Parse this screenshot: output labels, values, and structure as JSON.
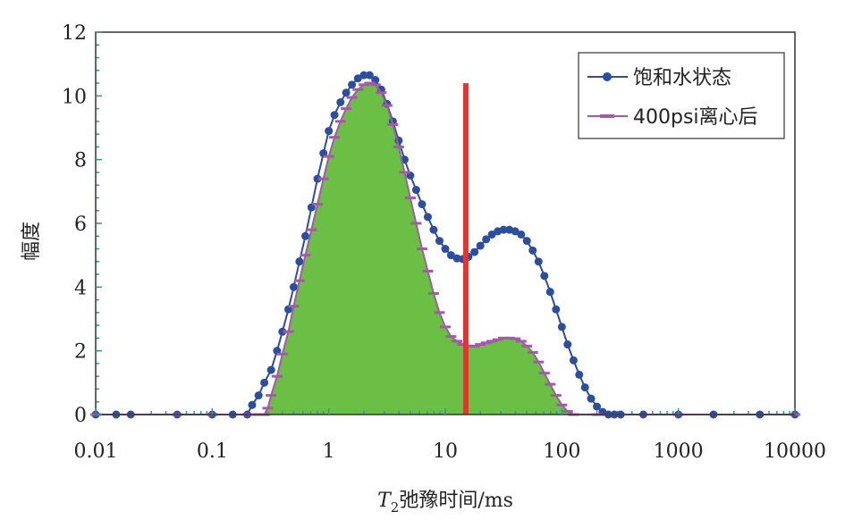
{
  "chart_data": {
    "type": "line",
    "x_scale": "log",
    "xlim": [
      0.01,
      10000
    ],
    "ylim": [
      0,
      12
    ],
    "x_tick_labels": [
      "0.01",
      "0.1",
      "1",
      "10",
      "100",
      "1000",
      "10000"
    ],
    "y_tick_labels": [
      "0",
      "2",
      "4",
      "6",
      "8",
      "10",
      "12"
    ],
    "xlabel_italic": "T",
    "xlabel_sub": "2",
    "xlabel_rest": "弛豫时间/ms",
    "ylabel": "幅度",
    "legend_position": "top-right",
    "cutoff_line": {
      "x": 15,
      "y_top": 10.4,
      "color": "#e8322c"
    },
    "series": [
      {
        "name": "饱和水状态",
        "color": "#2b4f9e",
        "marker": "circle",
        "x": [
          0.01,
          0.015,
          0.02,
          0.05,
          0.1,
          0.15,
          0.2,
          0.22,
          0.25,
          0.28,
          0.32,
          0.36,
          0.4,
          0.45,
          0.5,
          0.56,
          0.63,
          0.71,
          0.8,
          0.9,
          1.0,
          1.12,
          1.26,
          1.41,
          1.58,
          1.78,
          2.0,
          2.24,
          2.51,
          2.82,
          3.16,
          3.55,
          3.98,
          4.47,
          5.01,
          5.62,
          6.31,
          7.08,
          7.94,
          8.91,
          10.0,
          11.2,
          12.6,
          14.1,
          15.8,
          17.8,
          20.0,
          22.4,
          25.1,
          28.2,
          31.6,
          35.5,
          39.8,
          44.7,
          50.1,
          56.2,
          63.1,
          70.8,
          79.4,
          89.1,
          100,
          112,
          126,
          141,
          158,
          178,
          200,
          224,
          251,
          282,
          320,
          500,
          1000,
          2000,
          5000,
          10000
        ],
        "y": [
          0,
          0,
          0,
          0,
          0,
          0,
          0,
          0.3,
          0.6,
          1.0,
          1.4,
          2.0,
          2.6,
          3.3,
          4.0,
          4.8,
          5.6,
          6.5,
          7.4,
          8.2,
          8.9,
          9.4,
          9.8,
          10.1,
          10.35,
          10.55,
          10.65,
          10.65,
          10.5,
          10.2,
          9.75,
          9.2,
          8.6,
          8.0,
          7.5,
          7.05,
          6.6,
          6.2,
          5.8,
          5.45,
          5.2,
          5.0,
          4.9,
          4.88,
          4.95,
          5.1,
          5.3,
          5.5,
          5.65,
          5.75,
          5.8,
          5.8,
          5.75,
          5.65,
          5.45,
          5.15,
          4.8,
          4.35,
          3.85,
          3.3,
          2.75,
          2.2,
          1.7,
          1.25,
          0.85,
          0.5,
          0.25,
          0.08,
          0,
          0,
          0,
          0,
          0,
          0,
          0,
          0
        ]
      },
      {
        "name": "400psi离心后",
        "color": "#a45aa8",
        "marker": "dash",
        "fill_color": "#6cbf45",
        "x": [
          0.01,
          0.05,
          0.1,
          0.2,
          0.25,
          0.28,
          0.3,
          0.32,
          0.36,
          0.4,
          0.45,
          0.5,
          0.56,
          0.63,
          0.71,
          0.8,
          0.9,
          1.0,
          1.12,
          1.26,
          1.41,
          1.58,
          1.78,
          2.0,
          2.24,
          2.51,
          2.82,
          3.16,
          3.55,
          3.98,
          4.47,
          5.01,
          5.62,
          6.31,
          7.08,
          7.94,
          8.91,
          10.0,
          11.2,
          12.6,
          14.1,
          15.8,
          17.8,
          20.0,
          22.4,
          25.1,
          28.2,
          31.6,
          35.5,
          39.8,
          44.7,
          50.1,
          56.2,
          63.1,
          70.8,
          79.4,
          89.1,
          100,
          112,
          126,
          200,
          1000,
          10000
        ],
        "y": [
          0,
          0,
          0,
          0,
          0,
          0,
          0.2,
          0.6,
          1.2,
          1.9,
          2.6,
          3.4,
          4.2,
          5.0,
          5.8,
          6.6,
          7.4,
          8.1,
          8.7,
          9.2,
          9.6,
          9.95,
          10.2,
          10.35,
          10.4,
          10.35,
          10.1,
          9.7,
          9.1,
          8.4,
          7.6,
          6.8,
          6.0,
          5.2,
          4.5,
          3.8,
          3.2,
          2.75,
          2.45,
          2.3,
          2.2,
          2.15,
          2.15,
          2.2,
          2.25,
          2.3,
          2.35,
          2.4,
          2.4,
          2.38,
          2.3,
          2.15,
          1.95,
          1.65,
          1.3,
          0.95,
          0.6,
          0.3,
          0.1,
          0,
          0,
          0,
          0
        ]
      }
    ]
  }
}
